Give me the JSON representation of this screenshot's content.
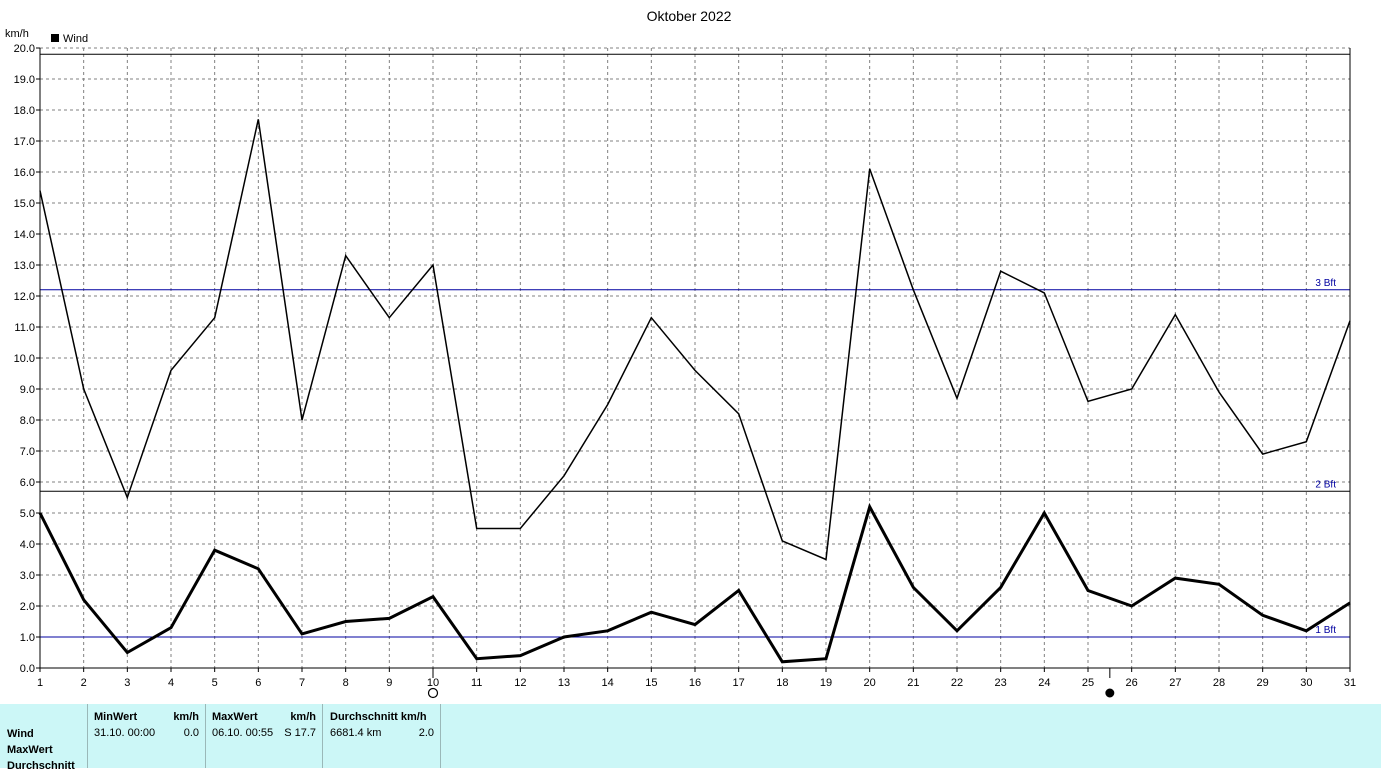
{
  "colors": {
    "background": "#ffffff",
    "grid": "#808080",
    "series": "#000000",
    "bft_line": "#0000a0",
    "panel": "#ccf7f7"
  },
  "chart_data": {
    "type": "line",
    "title": "Oktober 2022",
    "ylabel": "km/h",
    "xlabel": "",
    "legend": {
      "label": "Wind",
      "placement": "top-left"
    },
    "ylim": [
      0,
      20
    ],
    "xlim": [
      1,
      31
    ],
    "grid": true,
    "y_ticks": [
      "0.0",
      "1.0",
      "2.0",
      "3.0",
      "4.0",
      "5.0",
      "6.0",
      "7.0",
      "8.0",
      "9.0",
      "10.0",
      "11.0",
      "12.0",
      "13.0",
      "14.0",
      "15.0",
      "16.0",
      "17.0",
      "18.0",
      "19.0",
      "20.0"
    ],
    "x": [
      1,
      2,
      3,
      4,
      5,
      6,
      7,
      8,
      9,
      10,
      11,
      12,
      13,
      14,
      15,
      16,
      17,
      18,
      19,
      20,
      21,
      22,
      23,
      24,
      25,
      26,
      27,
      28,
      29,
      30,
      31
    ],
    "series": [
      {
        "values": [
          15.4,
          9.0,
          5.5,
          9.6,
          11.3,
          17.7,
          8.0,
          13.3,
          11.3,
          13.0,
          4.5,
          4.5,
          6.2,
          8.5,
          11.3,
          9.6,
          8.2,
          4.1,
          3.5,
          16.1,
          12.2,
          8.7,
          12.8,
          12.1,
          8.6,
          9.0,
          11.4,
          8.9,
          6.9,
          7.3,
          11.2
        ]
      },
      {
        "values": [
          5.0,
          2.2,
          0.5,
          1.3,
          3.8,
          3.2,
          1.1,
          1.5,
          1.6,
          2.3,
          0.3,
          0.4,
          1.0,
          1.2,
          1.8,
          1.4,
          2.5,
          0.2,
          0.3,
          5.2,
          2.6,
          1.2,
          2.6,
          5.0,
          2.5,
          2.0,
          2.9,
          2.7,
          1.7,
          1.2,
          2.1
        ]
      }
    ],
    "reference_lines": [
      {
        "label": "1 Bft",
        "value": 1.0
      },
      {
        "label": "2 Bft",
        "value": 5.7
      },
      {
        "label": "3 Bft",
        "value": 12.2
      }
    ],
    "top_line": {
      "value": 19.8
    },
    "moon_markers": [
      {
        "phase": "full",
        "day": 10.0
      },
      {
        "phase": "new",
        "day": 25.5
      }
    ]
  },
  "stats": {
    "row_labels": [
      "Wind",
      "MaxWert",
      "Durchschnitt"
    ],
    "min": {
      "header": "MinWert",
      "unit": "km/h",
      "date": "31.10.  00:00",
      "value": "0.0"
    },
    "max": {
      "header": "MaxWert",
      "unit": "km/h",
      "date": "06.10.  00:55",
      "value": "S 17.7"
    },
    "avg": {
      "header": "Durchschnitt km/h",
      "distance": "6681.4 km",
      "value": "2.0"
    }
  }
}
